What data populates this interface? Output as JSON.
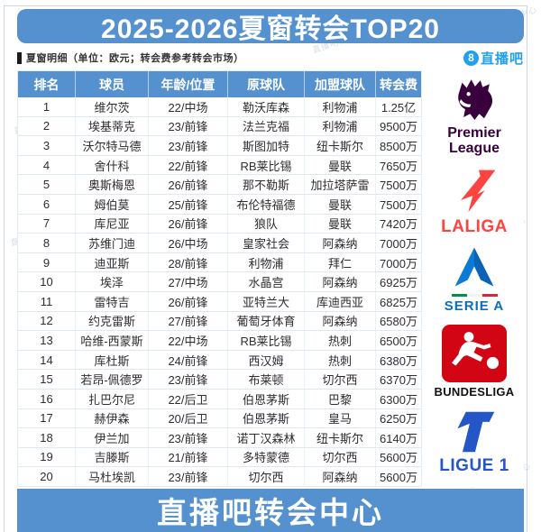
{
  "page": {
    "title": "2025-2026夏窗转会TOP20",
    "subtitle": "夏窗明细（单位：欧元；转会费参考转会市场）",
    "brand_badge": "8",
    "brand_name": "直播吧",
    "footer": "直播吧转会中心",
    "watermark": "直播吧转会中心"
  },
  "chart_data": {
    "type": "table",
    "title": "2025-2026夏窗转会TOP20",
    "headers": [
      "排名",
      "球员",
      "年龄/位置",
      "原球队",
      "加盟球队",
      "转会费"
    ],
    "rows": [
      [
        "1",
        "维尔茨",
        "22/中场",
        "勒沃库森",
        "利物浦",
        "1.25亿"
      ],
      [
        "2",
        "埃基蒂克",
        "23/前锋",
        "法兰克福",
        "利物浦",
        "9500万"
      ],
      [
        "3",
        "沃尔特马德",
        "23/前锋",
        "斯图加特",
        "纽卡斯尔",
        "8500万"
      ],
      [
        "4",
        "舍什科",
        "22/前锋",
        "RB莱比锡",
        "曼联",
        "7650万"
      ],
      [
        "5",
        "奥斯梅恩",
        "26/前锋",
        "那不勒斯",
        "加拉塔萨雷",
        "7500万"
      ],
      [
        "6",
        "姆伯莫",
        "25/前锋",
        "布伦特福德",
        "曼联",
        "7500万"
      ],
      [
        "7",
        "库尼亚",
        "26/前锋",
        "狼队",
        "曼联",
        "7420万"
      ],
      [
        "8",
        "苏维门迪",
        "26/中场",
        "皇家社会",
        "阿森纳",
        "7000万"
      ],
      [
        "9",
        "迪亚斯",
        "28/前锋",
        "利物浦",
        "拜仁",
        "7000万"
      ],
      [
        "10",
        "埃泽",
        "27/中场",
        "水晶宫",
        "阿森纳",
        "6925万"
      ],
      [
        "11",
        "雷特吉",
        "26/前锋",
        "亚特兰大",
        "库迪西亚",
        "6825万"
      ],
      [
        "12",
        "约克雷斯",
        "27/前锋",
        "葡萄牙体育",
        "阿森纳",
        "6580万"
      ],
      [
        "13",
        "哈维-西蒙斯",
        "22/中场",
        "RB莱比锡",
        "热刺",
        "6500万"
      ],
      [
        "14",
        "库杜斯",
        "24/前锋",
        "西汉姆",
        "热刺",
        "6380万"
      ],
      [
        "15",
        "若昂-佩德罗",
        "23/前锋",
        "布莱顿",
        "切尔西",
        "6370万"
      ],
      [
        "16",
        "扎巴尔尼",
        "22/后卫",
        "伯恩茅斯",
        "巴黎",
        "6300万"
      ],
      [
        "17",
        "赫伊森",
        "20/后卫",
        "伯恩茅斯",
        "皇马",
        "6250万"
      ],
      [
        "18",
        "伊兰加",
        "23/前锋",
        "诺丁汉森林",
        "纽卡斯尔",
        "6140万"
      ],
      [
        "19",
        "吉滕斯",
        "21/前锋",
        "多特蒙德",
        "切尔西",
        "5600万"
      ],
      [
        "20",
        "马杜埃凯",
        "23/前锋",
        "切尔西",
        "阿森纳",
        "5600万"
      ]
    ]
  },
  "leagues": [
    {
      "name": "premier-league",
      "line1": "Premier",
      "line2": "League",
      "color": "#38003c"
    },
    {
      "name": "laliga",
      "label": "LALIGA",
      "color": "#ff4440"
    },
    {
      "name": "serie-a",
      "label": "SERIE A",
      "color": "#0a6ebd"
    },
    {
      "name": "bundesliga",
      "label": "BUNDESLIGA",
      "color": "#d20515"
    },
    {
      "name": "ligue-1",
      "label": "LIGUE 1",
      "color": "#2456c8"
    }
  ],
  "colors": {
    "banner": "#5591cf",
    "table_header": "#5591cf",
    "footer": "#5591cf",
    "brand_blue": "#1fa0f0"
  }
}
